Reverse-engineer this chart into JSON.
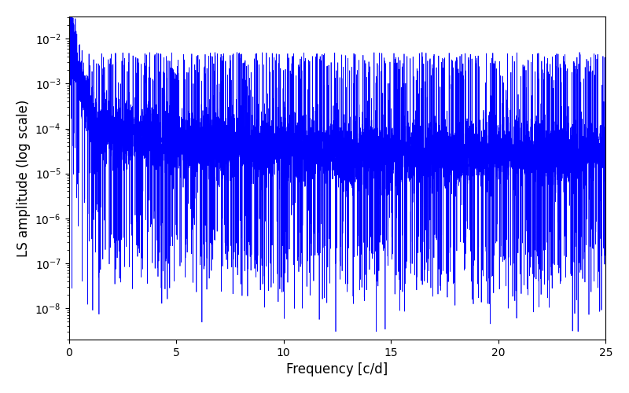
{
  "title": "",
  "xlabel": "Frequency [c/d]",
  "ylabel": "LS amplitude (log scale)",
  "line_color": "#0000ff",
  "line_width": 0.5,
  "xlim": [
    0,
    25
  ],
  "ylim_log_min": -8.7,
  "ylim_log_max": -1.5,
  "background_color": "#ffffff",
  "n_points": 8000,
  "seed": 7,
  "peak_amplitude": 0.018,
  "noise_floor_high": 8e-05,
  "noise_floor_low": 3e-05,
  "decay_rate": 0.25,
  "log_noise_sigma": 0.85,
  "spike_prob": 0.08,
  "spike_depth_min": 0.0001,
  "spike_depth_max": 0.005,
  "figsize": [
    8.0,
    5.0
  ],
  "dpi": 100
}
